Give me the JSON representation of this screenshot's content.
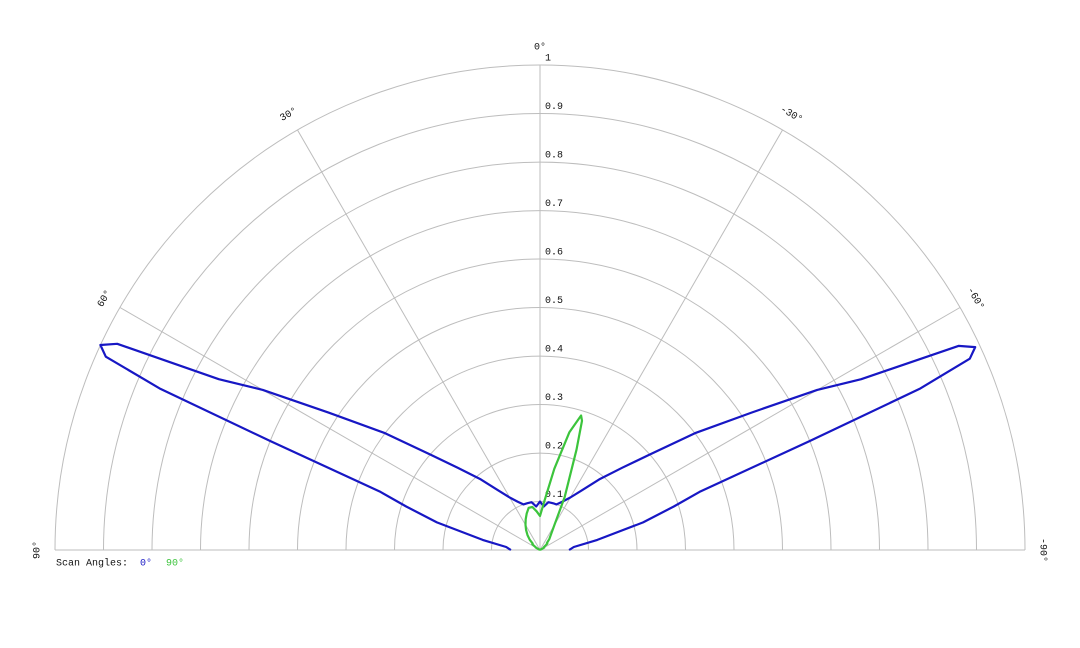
{
  "chart_data": {
    "type": "polar",
    "x": [
      90,
      85,
      80,
      75,
      72,
      70,
      68,
      67,
      66,
      65,
      64,
      62,
      60,
      57,
      53,
      49,
      45,
      40,
      35,
      30,
      25,
      20,
      15,
      10,
      5,
      0,
      -5,
      -10,
      -14,
      -17,
      -18,
      -20,
      -25,
      -30,
      -35,
      -40,
      -45,
      -49,
      -53,
      -57,
      -60,
      -62,
      -64,
      -65,
      -66,
      -67,
      -68,
      -70,
      -72,
      -75,
      -80,
      -85,
      -90
    ],
    "series": [
      {
        "name": "0°",
        "color": "#1717c4",
        "values": [
          0.06,
          0.07,
          0.12,
          0.22,
          0.29,
          0.35,
          0.6,
          0.85,
          0.98,
          1.0,
          0.97,
          0.75,
          0.66,
          0.52,
          0.4,
          0.3,
          0.24,
          0.19,
          0.15,
          0.125,
          0.11,
          0.1,
          0.1,
          0.1,
          0.09,
          0.1,
          0.09,
          0.1,
          0.1,
          0.1,
          0.1,
          0.1,
          0.11,
          0.125,
          0.15,
          0.19,
          0.24,
          0.3,
          0.4,
          0.52,
          0.66,
          0.75,
          0.96,
          0.99,
          0.97,
          0.85,
          0.6,
          0.35,
          0.29,
          0.22,
          0.12,
          0.07,
          0.06
        ]
      },
      {
        "name": "90°",
        "color": "#3cc43c",
        "values": [
          0,
          0,
          0,
          0,
          0,
          0,
          0,
          0,
          0,
          0,
          0,
          0,
          0.01,
          0.01,
          0.02,
          0.02,
          0.03,
          0.04,
          0.05,
          0.06,
          0.07,
          0.08,
          0.09,
          0.09,
          0.08,
          0.07,
          0.1,
          0.17,
          0.25,
          0.29,
          0.28,
          0.22,
          0.12,
          0.06,
          0.04,
          0.03,
          0.02,
          0.02,
          0.01,
          0.01,
          0.01,
          0,
          0,
          0,
          0,
          0,
          0,
          0,
          0,
          0,
          0,
          0,
          0
        ]
      }
    ],
    "rlim": [
      0,
      1.0
    ],
    "rticks": [
      0.1,
      0.2,
      0.3,
      0.4,
      0.5,
      0.6,
      0.7,
      0.8,
      0.9,
      1.0
    ],
    "xlim": [
      90,
      -90
    ],
    "xticks": [
      {
        "value": 90,
        "label": "90°"
      },
      {
        "value": 60,
        "label": "60°"
      },
      {
        "value": 30,
        "label": "30°"
      },
      {
        "value": 0,
        "label": "0°"
      },
      {
        "value": -30,
        "label": "-30°"
      },
      {
        "value": -60,
        "label": "-60°"
      },
      {
        "value": -90,
        "label": "-90°"
      }
    ],
    "legend_title": "Scan Angles:",
    "legend": "bottom-left",
    "grid": true
  }
}
